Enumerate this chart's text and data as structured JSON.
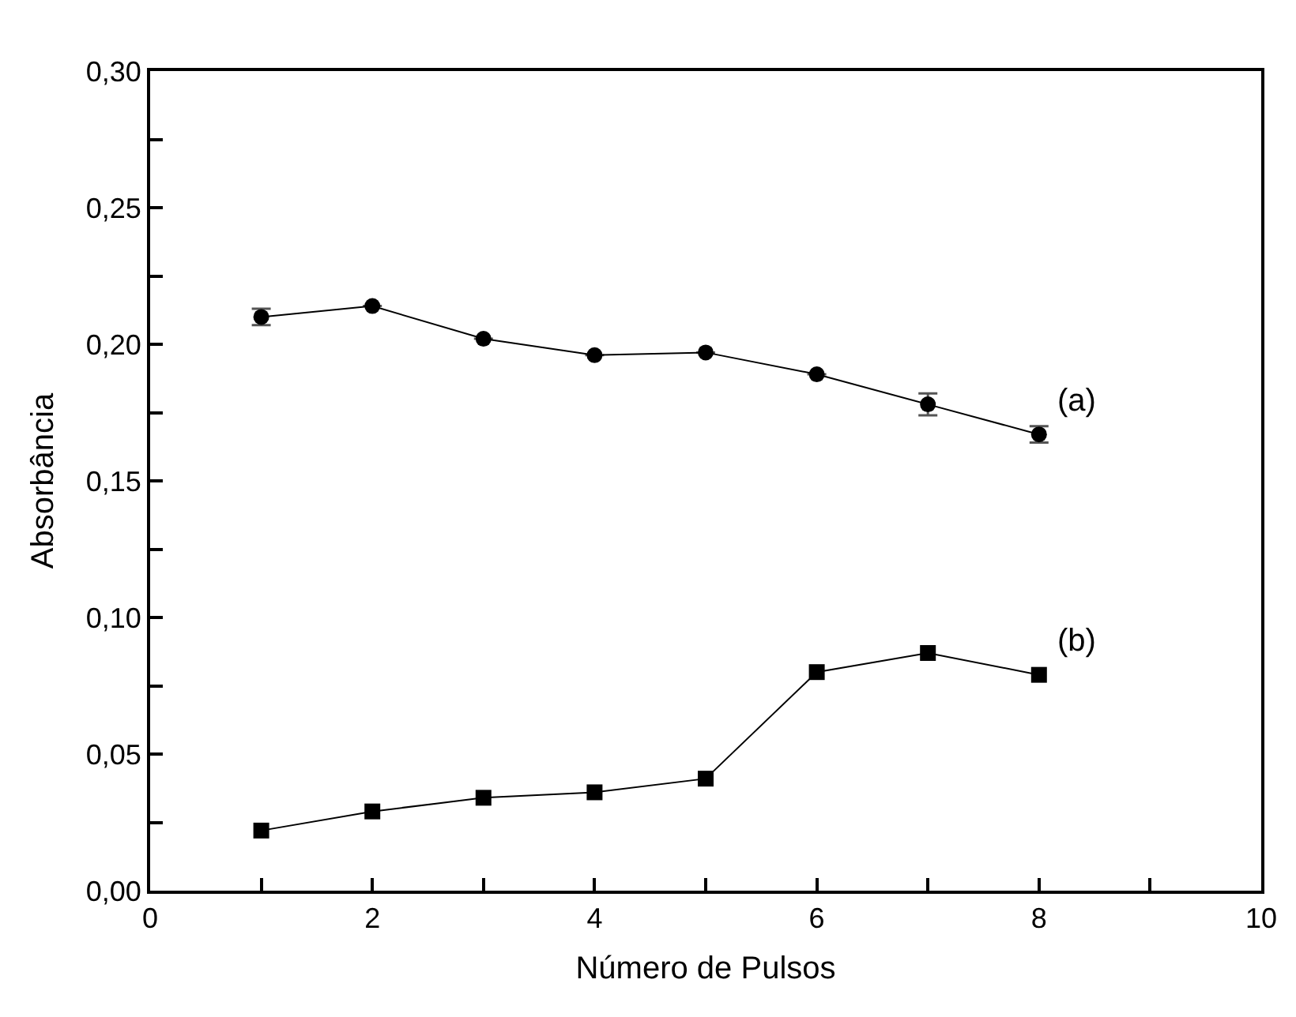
{
  "chart_data": {
    "type": "line",
    "xlabel": "Número de Pulsos",
    "ylabel": "Absorbância",
    "x": [
      1,
      2,
      3,
      4,
      5,
      6,
      7,
      8
    ],
    "series": [
      {
        "color": "#000000",
        "marker": "circle",
        "values": [
          0.21,
          0.214,
          0.202,
          0.196,
          0.197,
          0.189,
          0.178,
          0.167
        ],
        "errors": [
          0.003,
          null,
          null,
          null,
          null,
          null,
          0.004,
          0.003
        ]
      },
      {
        "color": "#000000",
        "marker": "square",
        "values": [
          0.022,
          0.029,
          0.034,
          0.036,
          0.041,
          0.08,
          0.087,
          0.079
        ]
      }
    ],
    "annotations": [
      {
        "text": "(a)",
        "x": 8,
        "y": 0.167
      },
      {
        "text": "(b)",
        "x": 8,
        "y": 0.079
      }
    ],
    "xlim": [
      0,
      10
    ],
    "ylim": [
      0,
      0.3
    ],
    "xticks": [
      0,
      {
        "value": 1,
        "label": null
      },
      2,
      {
        "value": 3,
        "label": null
      },
      4,
      {
        "value": 5,
        "label": null
      },
      6,
      {
        "value": 7,
        "label": null
      },
      8,
      {
        "value": 9,
        "label": null
      },
      10
    ],
    "yticks": [
      {
        "value": 0,
        "label": "0,00"
      },
      {
        "value": 0.025,
        "label": null
      },
      {
        "value": 0.05,
        "label": "0,05"
      },
      {
        "value": 0.075,
        "label": null
      },
      {
        "value": 0.1,
        "label": "0,10"
      },
      {
        "value": 0.125,
        "label": null
      },
      {
        "value": 0.15,
        "label": "0,15"
      },
      {
        "value": 0.175,
        "label": null
      },
      {
        "value": 0.2,
        "label": "0,20"
      },
      {
        "value": 0.225,
        "label": null
      },
      {
        "value": 0.25,
        "label": "0,25"
      },
      {
        "value": 0.275,
        "label": null
      },
      {
        "value": 0.3,
        "label": "0,30"
      }
    ],
    "line_style": "solid"
  }
}
